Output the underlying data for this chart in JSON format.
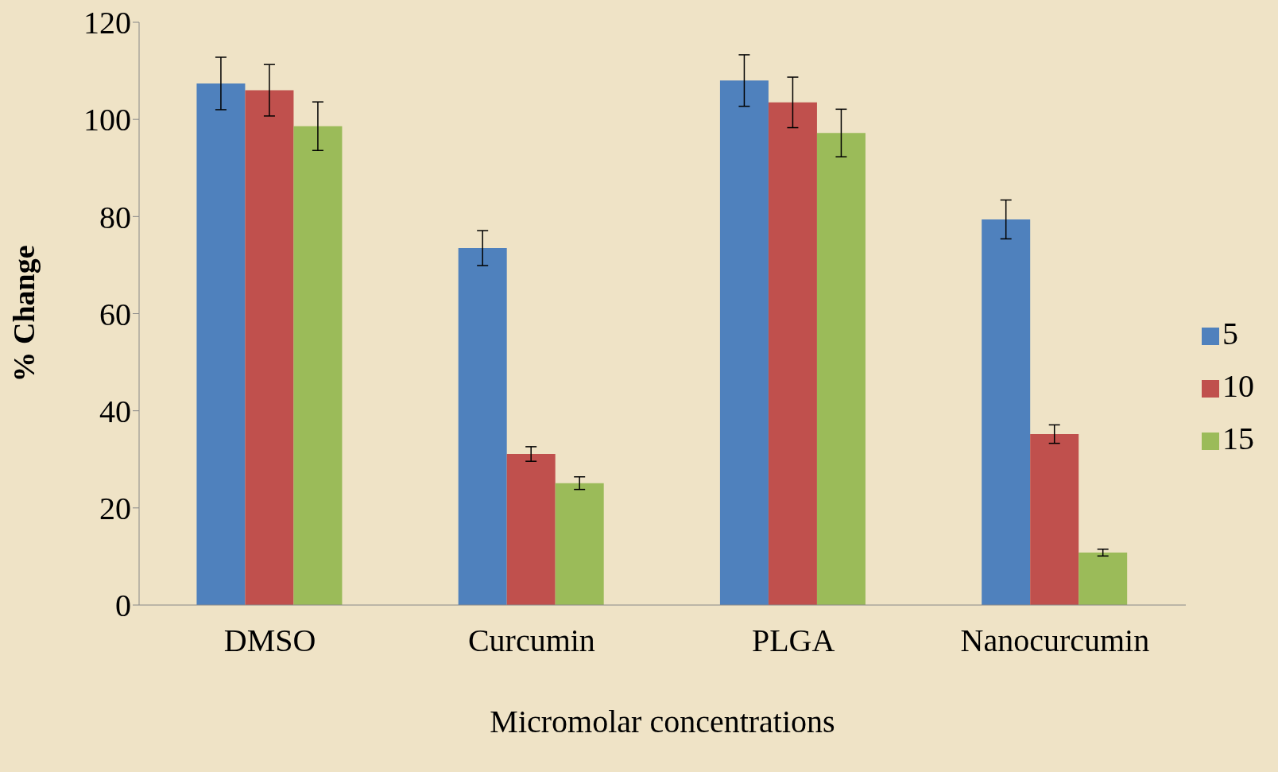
{
  "chart_data": {
    "type": "bar",
    "xlabel": "Micromolar concentrations",
    "ylabel": "% Change",
    "categories": [
      "DMSO",
      "Curcumin",
      "PLGA",
      "Nanocurcumin"
    ],
    "series": [
      {
        "name": "5",
        "color": "#4f81bd",
        "values": [
          107.4,
          73.5,
          108.0,
          79.4
        ],
        "errors": [
          5.4,
          3.6,
          5.3,
          4.0
        ]
      },
      {
        "name": "10",
        "color": "#c0504d",
        "values": [
          106.0,
          31.1,
          103.5,
          35.2
        ],
        "errors": [
          5.3,
          1.5,
          5.2,
          1.9
        ]
      },
      {
        "name": "15",
        "color": "#9bbb59",
        "values": [
          98.6,
          25.1,
          97.2,
          10.8
        ],
        "errors": [
          5.0,
          1.3,
          4.9,
          0.7
        ]
      }
    ],
    "ylim": [
      0,
      120
    ],
    "yticks": [
      0,
      20,
      40,
      60,
      80,
      100,
      120
    ],
    "legend": "right"
  }
}
